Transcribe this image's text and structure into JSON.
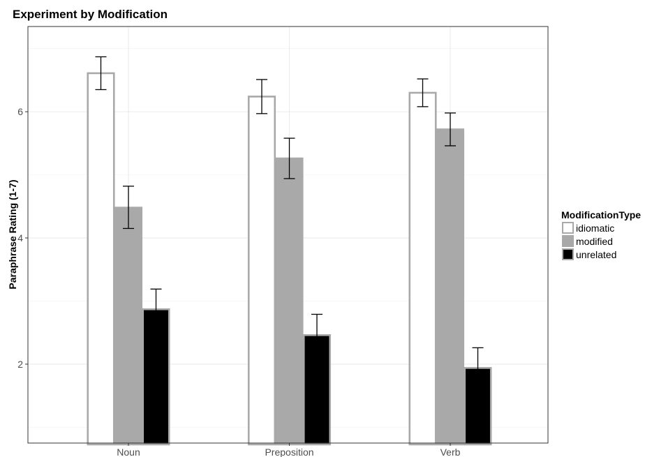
{
  "chart_data": {
    "type": "bar",
    "title": "Experiment by Modification",
    "xlabel": "",
    "ylabel": "Paraphrase Rating (1-7)",
    "categories": [
      "Noun",
      "Preposition",
      "Verb"
    ],
    "ylim": [
      0.75,
      7.35
    ],
    "yticks": [
      2,
      4,
      6
    ],
    "grid": true,
    "legend": {
      "title": "ModificationType",
      "position": "right"
    },
    "series": [
      {
        "name": "idiomatic",
        "fill": "#ffffff",
        "stroke": "#a9a9a9",
        "values": [
          6.61,
          6.24,
          6.3
        ],
        "error_low": [
          6.35,
          5.97,
          6.08
        ],
        "error_high": [
          6.87,
          6.51,
          6.52
        ]
      },
      {
        "name": "modified",
        "fill": "#a9a9a9",
        "stroke": "#a9a9a9",
        "values": [
          4.48,
          5.26,
          5.72
        ],
        "error_low": [
          4.15,
          4.94,
          5.46
        ],
        "error_high": [
          4.82,
          5.58,
          5.98
        ]
      },
      {
        "name": "unrelated",
        "fill": "#000000",
        "stroke": "#a9a9a9",
        "values": [
          2.87,
          2.46,
          1.94
        ],
        "error_low": [
          2.55,
          2.13,
          1.63
        ],
        "error_high": [
          3.19,
          2.79,
          2.26
        ]
      }
    ]
  }
}
